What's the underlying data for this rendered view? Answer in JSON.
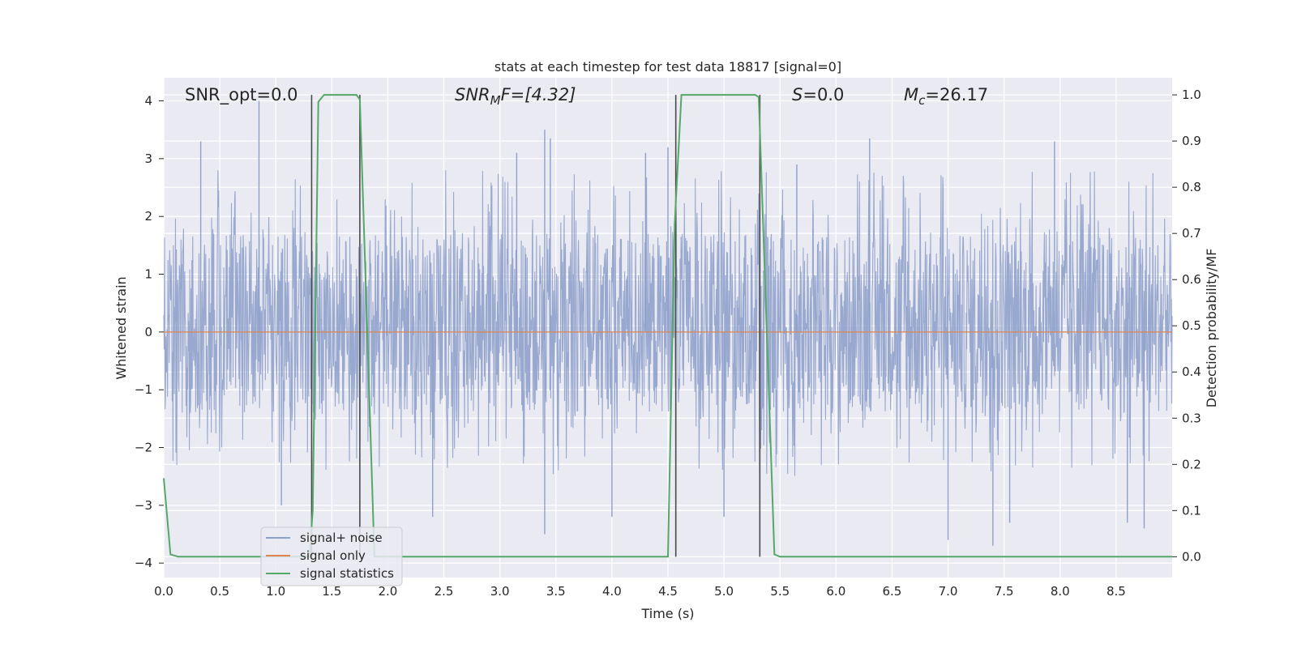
{
  "chart_data": {
    "type": "line",
    "title": "stats at each timestep for test data 18817 [signal=0]",
    "xlabel": "Time (s)",
    "ylabel": "Whitened strain",
    "y2label": "Detection probability/MF",
    "xlim": [
      0,
      9.0
    ],
    "ylim": [
      -4.25,
      4.4
    ],
    "y2lim": [
      -0.045,
      1.037
    ],
    "xticks": [
      "0.0",
      "0.5",
      "1.0",
      "1.5",
      "2.0",
      "2.5",
      "3.0",
      "3.5",
      "4.0",
      "4.5",
      "5.0",
      "5.5",
      "6.0",
      "6.5",
      "7.0",
      "7.5",
      "8.0",
      "8.5"
    ],
    "yticks": [
      "−4",
      "−3",
      "−2",
      "−1",
      "0",
      "1",
      "2",
      "3",
      "4"
    ],
    "y2ticks": [
      "0.0",
      "0.1",
      "0.2",
      "0.3",
      "0.4",
      "0.5",
      "0.6",
      "0.7",
      "0.8",
      "0.9",
      "1.0"
    ],
    "grid": true,
    "legend_position": "lower-left",
    "series": [
      {
        "name": "signal+ noise",
        "color": "#8fa1cb",
        "axis": "left",
        "note_values": "noise-like whitened strain, typical band about -1.4 to 1.7 with peaks up to about 4.0 and troughs down to about -3.7",
        "typical_low": -1.4,
        "typical_high": 1.7,
        "peaks": [
          [
            0.85,
            4.0
          ],
          [
            0.33,
            3.3
          ],
          [
            3.4,
            3.5
          ],
          [
            3.45,
            3.35
          ],
          [
            5.65,
            2.9
          ],
          [
            6.3,
            3.35
          ],
          [
            7.95,
            3.3
          ],
          [
            4.5,
            3.2
          ],
          [
            3.15,
            3.1
          ],
          [
            4.3,
            3.1
          ]
        ],
        "troughs": [
          [
            7.4,
            -3.7
          ],
          [
            7.0,
            -3.6
          ],
          [
            8.75,
            -3.4
          ],
          [
            3.4,
            -3.5
          ],
          [
            4.0,
            -3.2
          ],
          [
            2.4,
            -3.2
          ],
          [
            8.6,
            -3.3
          ],
          [
            7.55,
            -3.3
          ],
          [
            1.05,
            -3.0
          ],
          [
            5.0,
            -3.2
          ]
        ]
      },
      {
        "name": "signal only",
        "color": "#dd8452",
        "axis": "left",
        "x": [
          0,
          9.0
        ],
        "y": [
          0,
          0
        ]
      },
      {
        "name": "signal statistics",
        "color": "#55a868",
        "axis": "right",
        "x": [
          0.0,
          0.06,
          0.13,
          1.3,
          1.33,
          1.38,
          1.43,
          1.72,
          1.75,
          1.88,
          1.95,
          4.5,
          4.56,
          4.62,
          5.28,
          5.31,
          5.45,
          5.5,
          9.0
        ],
        "y": [
          0.17,
          0.005,
          0.0,
          0.0,
          0.1,
          0.985,
          1.0,
          1.0,
          0.99,
          0.0,
          0.0,
          0.0,
          0.72,
          1.0,
          1.0,
          0.995,
          0.005,
          0.0,
          0.0
        ]
      }
    ],
    "vertical_lines_x": [
      1.32,
      1.75,
      4.57,
      5.32
    ],
    "annotations": {
      "snr_opt": "SNR_opt=0.0",
      "snr_mf_label": "SNR",
      "snr_mf_sub": "M",
      "snr_mf_rest": "F=[4.32]",
      "s_label": "S",
      "s_rest": "=0.0",
      "mc_label": "M",
      "mc_sub": "c",
      "mc_rest": "=26.17"
    }
  }
}
